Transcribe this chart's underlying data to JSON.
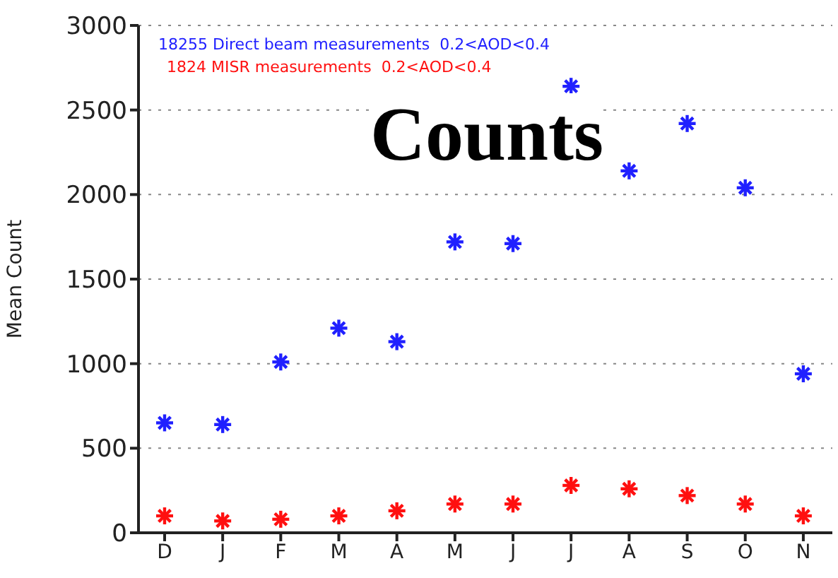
{
  "chart_data": {
    "type": "scatter",
    "title": "Counts",
    "ylabel": "Mean Count",
    "categories": [
      "D",
      "J",
      "F",
      "M",
      "A",
      "M",
      "J",
      "J",
      "A",
      "S",
      "O",
      "N"
    ],
    "series": [
      {
        "name": "18255 Direct beam measurements  0.2<AOD<0.4",
        "color": "#2020ff",
        "values": [
          650,
          640,
          1010,
          1210,
          1130,
          1720,
          1710,
          2640,
          2140,
          2420,
          2040,
          940
        ]
      },
      {
        "name": "1824 MISR measurements  0.2<AOD<0.4",
        "color": "#ff1010",
        "values": [
          100,
          70,
          80,
          100,
          130,
          170,
          170,
          280,
          260,
          220,
          170,
          100
        ]
      }
    ],
    "ylim": [
      0,
      3000
    ],
    "yticks": [
      0,
      500,
      1000,
      1500,
      2000,
      2500,
      3000
    ],
    "grid": "y",
    "legend": "top left",
    "marker": "cross"
  }
}
